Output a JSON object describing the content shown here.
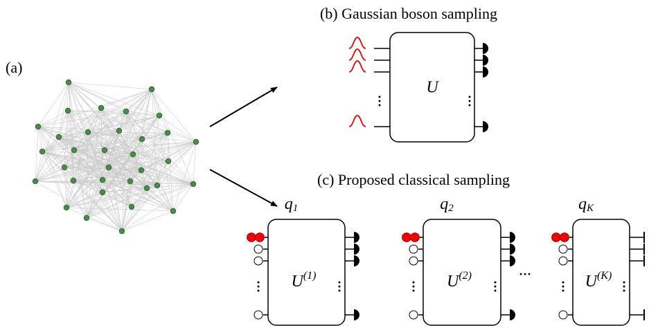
{
  "panel_a": {
    "label": "(a)"
  },
  "panel_b": {
    "title": "(b) Gaussian boson sampling",
    "unitary": "U"
  },
  "panel_c": {
    "title": "(c) Proposed classical sampling",
    "stages": [
      {
        "q": {
          "base": "q",
          "sub": "1"
        },
        "unitary": {
          "base": "U",
          "sup": "(1)"
        }
      },
      {
        "q": {
          "base": "q",
          "sub": "2"
        },
        "unitary": {
          "base": "U",
          "sup": "(2)"
        }
      },
      {
        "q": {
          "base": "q",
          "sub": "K"
        },
        "unitary": {
          "base": "U",
          "sup": "(K)"
        }
      }
    ],
    "ellipsis": "···"
  }
}
